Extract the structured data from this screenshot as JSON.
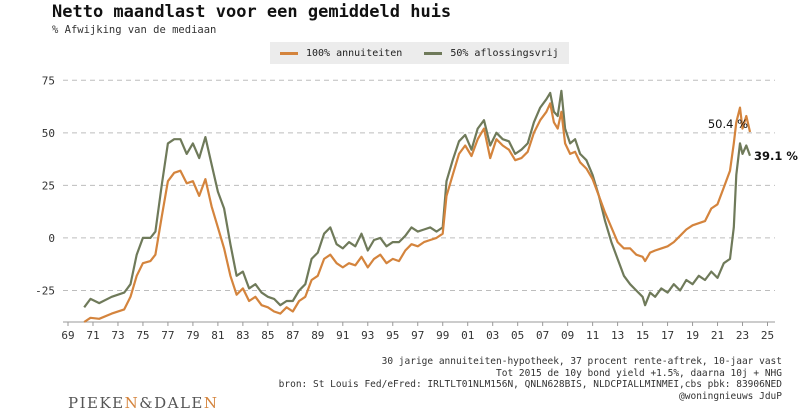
{
  "header": {
    "title": "Netto maandlast voor een gemiddeld huis",
    "subtitle": "% Afwijking van de mediaan"
  },
  "footnotes": [
    "30 jarige annuiteiten-hypotheek, 37 procent rente-aftrek, 10-jaar vast",
    "Tot 2015 de 10y bond yield +1.5%, daarna 10j + NHG",
    "bron: St Louis Fed/eFred: IRLTLT01NLM156N, QNLN628BIS, NLDCPIALLMINMEI,cbs pbk: 83906NED",
    "@woningnieuws JduP"
  ],
  "logo": {
    "left": "PIEKE",
    "n1": "N",
    "amp": "&DALE",
    "n2": "N"
  },
  "colors": {
    "annuiteit": "#d4843d",
    "aflossingsvrij": "#6f7a5a",
    "grid": "#bdbdbd"
  },
  "chart_data": {
    "type": "line",
    "ylim": [
      -40,
      78
    ],
    "xlim": [
      1968.6,
      2025.6
    ],
    "y_ticks": [
      -25,
      0,
      25,
      50,
      75
    ],
    "x_ticks": [
      "69",
      "71",
      "73",
      "75",
      "77",
      "79",
      "81",
      "83",
      "85",
      "87",
      "89",
      "91",
      "93",
      "95",
      "97",
      "99",
      "01",
      "03",
      "05",
      "07",
      "09",
      "11",
      "13",
      "15",
      "17",
      "19",
      "21",
      "23",
      "25"
    ],
    "grid": "horizontal dashed",
    "legend_position": "top-center",
    "series": [
      {
        "name": "100% annuiteiten",
        "points": [
          [
            1970.3,
            -40
          ],
          [
            1970.8,
            -38
          ],
          [
            1971.5,
            -38.5
          ],
          [
            1972.5,
            -36
          ],
          [
            1973.5,
            -34
          ],
          [
            1974.0,
            -28
          ],
          [
            1974.5,
            -18
          ],
          [
            1975.0,
            -12
          ],
          [
            1975.6,
            -11
          ],
          [
            1976.0,
            -8
          ],
          [
            1976.5,
            10
          ],
          [
            1977.0,
            27
          ],
          [
            1977.5,
            31
          ],
          [
            1978.0,
            32
          ],
          [
            1978.5,
            26
          ],
          [
            1979.0,
            27
          ],
          [
            1979.5,
            20
          ],
          [
            1980.0,
            28
          ],
          [
            1980.5,
            15
          ],
          [
            1981.0,
            5
          ],
          [
            1981.5,
            -5
          ],
          [
            1982.0,
            -18
          ],
          [
            1982.5,
            -27
          ],
          [
            1983.0,
            -24
          ],
          [
            1983.5,
            -30
          ],
          [
            1984.0,
            -28
          ],
          [
            1984.5,
            -32
          ],
          [
            1985.0,
            -33
          ],
          [
            1985.5,
            -35
          ],
          [
            1986.0,
            -36
          ],
          [
            1986.5,
            -33
          ],
          [
            1987.0,
            -35
          ],
          [
            1987.5,
            -30
          ],
          [
            1988.0,
            -28
          ],
          [
            1988.5,
            -20
          ],
          [
            1989.0,
            -18
          ],
          [
            1989.5,
            -10
          ],
          [
            1990.0,
            -8
          ],
          [
            1990.5,
            -12
          ],
          [
            1991.0,
            -14
          ],
          [
            1991.5,
            -12
          ],
          [
            1992.0,
            -13
          ],
          [
            1992.5,
            -9
          ],
          [
            1993.0,
            -14
          ],
          [
            1993.5,
            -10
          ],
          [
            1994.0,
            -8
          ],
          [
            1994.5,
            -12
          ],
          [
            1995.0,
            -10
          ],
          [
            1995.5,
            -11
          ],
          [
            1996.0,
            -6
          ],
          [
            1996.5,
            -3
          ],
          [
            1997.0,
            -4
          ],
          [
            1997.5,
            -2
          ],
          [
            1998.0,
            -1
          ],
          [
            1998.5,
            0
          ],
          [
            1999.0,
            2
          ],
          [
            1999.3,
            20
          ],
          [
            1999.8,
            30
          ],
          [
            2000.3,
            40
          ],
          [
            2000.8,
            44
          ],
          [
            2001.3,
            39
          ],
          [
            2001.8,
            47
          ],
          [
            2002.3,
            52
          ],
          [
            2002.8,
            38
          ],
          [
            2003.3,
            47
          ],
          [
            2003.8,
            44
          ],
          [
            2004.3,
            42
          ],
          [
            2004.8,
            37
          ],
          [
            2005.3,
            38
          ],
          [
            2005.8,
            41
          ],
          [
            2006.3,
            50
          ],
          [
            2006.8,
            56
          ],
          [
            2007.3,
            60
          ],
          [
            2007.6,
            64
          ],
          [
            2007.9,
            55
          ],
          [
            2008.2,
            52
          ],
          [
            2008.5,
            60
          ],
          [
            2008.8,
            45
          ],
          [
            2009.2,
            40
          ],
          [
            2009.6,
            41
          ],
          [
            2010.0,
            36
          ],
          [
            2010.5,
            33
          ],
          [
            2011.0,
            28
          ],
          [
            2011.5,
            20
          ],
          [
            2012.0,
            12
          ],
          [
            2012.5,
            5
          ],
          [
            2013.0,
            -2
          ],
          [
            2013.5,
            -5
          ],
          [
            2014.0,
            -5
          ],
          [
            2014.5,
            -8
          ],
          [
            2015.0,
            -9
          ],
          [
            2015.2,
            -11
          ],
          [
            2015.6,
            -7
          ],
          [
            2016.0,
            -6
          ],
          [
            2016.5,
            -5
          ],
          [
            2017.0,
            -4
          ],
          [
            2017.5,
            -2
          ],
          [
            2018.0,
            1
          ],
          [
            2018.5,
            4
          ],
          [
            2019.0,
            6
          ],
          [
            2019.5,
            7
          ],
          [
            2020.0,
            8
          ],
          [
            2020.5,
            14
          ],
          [
            2021.0,
            16
          ],
          [
            2021.5,
            24
          ],
          [
            2022.0,
            32
          ],
          [
            2022.3,
            45
          ],
          [
            2022.5,
            55
          ],
          [
            2022.8,
            62
          ],
          [
            2023.0,
            52
          ],
          [
            2023.3,
            58
          ],
          [
            2023.6,
            50.4
          ]
        ]
      },
      {
        "name": "50% aflossingsvrij",
        "points": [
          [
            1970.3,
            -33
          ],
          [
            1970.8,
            -29
          ],
          [
            1971.5,
            -31
          ],
          [
            1972.5,
            -28
          ],
          [
            1973.5,
            -26
          ],
          [
            1974.0,
            -22
          ],
          [
            1974.5,
            -8
          ],
          [
            1975.0,
            0
          ],
          [
            1975.6,
            0
          ],
          [
            1976.0,
            3
          ],
          [
            1976.5,
            25
          ],
          [
            1977.0,
            45
          ],
          [
            1977.5,
            47
          ],
          [
            1978.0,
            47
          ],
          [
            1978.5,
            40
          ],
          [
            1979.0,
            45
          ],
          [
            1979.5,
            38
          ],
          [
            1980.0,
            48
          ],
          [
            1980.5,
            35
          ],
          [
            1981.0,
            22
          ],
          [
            1981.5,
            14
          ],
          [
            1982.0,
            -3
          ],
          [
            1982.5,
            -18
          ],
          [
            1983.0,
            -16
          ],
          [
            1983.5,
            -24
          ],
          [
            1984.0,
            -22
          ],
          [
            1984.5,
            -26
          ],
          [
            1985.0,
            -28
          ],
          [
            1985.5,
            -29
          ],
          [
            1986.0,
            -32
          ],
          [
            1986.5,
            -30
          ],
          [
            1987.0,
            -30
          ],
          [
            1987.5,
            -25
          ],
          [
            1988.0,
            -22
          ],
          [
            1988.5,
            -10
          ],
          [
            1989.0,
            -7
          ],
          [
            1989.5,
            2
          ],
          [
            1990.0,
            5
          ],
          [
            1990.5,
            -3
          ],
          [
            1991.0,
            -5
          ],
          [
            1991.5,
            -2
          ],
          [
            1992.0,
            -4
          ],
          [
            1992.5,
            2
          ],
          [
            1993.0,
            -6
          ],
          [
            1993.5,
            -1
          ],
          [
            1994.0,
            0
          ],
          [
            1994.5,
            -4
          ],
          [
            1995.0,
            -2
          ],
          [
            1995.5,
            -2
          ],
          [
            1996.0,
            1
          ],
          [
            1996.5,
            5
          ],
          [
            1997.0,
            3
          ],
          [
            1997.5,
            4
          ],
          [
            1998.0,
            5
          ],
          [
            1998.5,
            3
          ],
          [
            1999.0,
            5
          ],
          [
            1999.3,
            27
          ],
          [
            1999.8,
            37
          ],
          [
            2000.3,
            46
          ],
          [
            2000.8,
            49
          ],
          [
            2001.3,
            42
          ],
          [
            2001.8,
            52
          ],
          [
            2002.3,
            56
          ],
          [
            2002.8,
            44
          ],
          [
            2003.3,
            50
          ],
          [
            2003.8,
            47
          ],
          [
            2004.3,
            46
          ],
          [
            2004.8,
            40
          ],
          [
            2005.3,
            42
          ],
          [
            2005.8,
            45
          ],
          [
            2006.3,
            55
          ],
          [
            2006.8,
            62
          ],
          [
            2007.3,
            66
          ],
          [
            2007.6,
            69
          ],
          [
            2007.9,
            60
          ],
          [
            2008.2,
            58
          ],
          [
            2008.5,
            70
          ],
          [
            2008.8,
            52
          ],
          [
            2009.2,
            45
          ],
          [
            2009.6,
            47
          ],
          [
            2010.0,
            40
          ],
          [
            2010.5,
            37
          ],
          [
            2011.0,
            30
          ],
          [
            2011.5,
            20
          ],
          [
            2012.0,
            8
          ],
          [
            2012.5,
            -2
          ],
          [
            2013.0,
            -10
          ],
          [
            2013.5,
            -18
          ],
          [
            2014.0,
            -22
          ],
          [
            2014.5,
            -25
          ],
          [
            2015.0,
            -28
          ],
          [
            2015.2,
            -32
          ],
          [
            2015.6,
            -26
          ],
          [
            2016.0,
            -28
          ],
          [
            2016.5,
            -24
          ],
          [
            2017.0,
            -26
          ],
          [
            2017.5,
            -22
          ],
          [
            2018.0,
            -25
          ],
          [
            2018.5,
            -20
          ],
          [
            2019.0,
            -22
          ],
          [
            2019.5,
            -18
          ],
          [
            2020.0,
            -20
          ],
          [
            2020.5,
            -16
          ],
          [
            2021.0,
            -19
          ],
          [
            2021.5,
            -12
          ],
          [
            2022.0,
            -10
          ],
          [
            2022.3,
            5
          ],
          [
            2022.5,
            30
          ],
          [
            2022.8,
            45
          ],
          [
            2023.0,
            40
          ],
          [
            2023.3,
            44
          ],
          [
            2023.6,
            39.1
          ]
        ]
      }
    ],
    "annotations": [
      {
        "text": "50.4 %",
        "x": 2023.6,
        "y": 50.4
      },
      {
        "text": "39.1 %",
        "x": 2023.6,
        "y": 39.1
      }
    ]
  }
}
